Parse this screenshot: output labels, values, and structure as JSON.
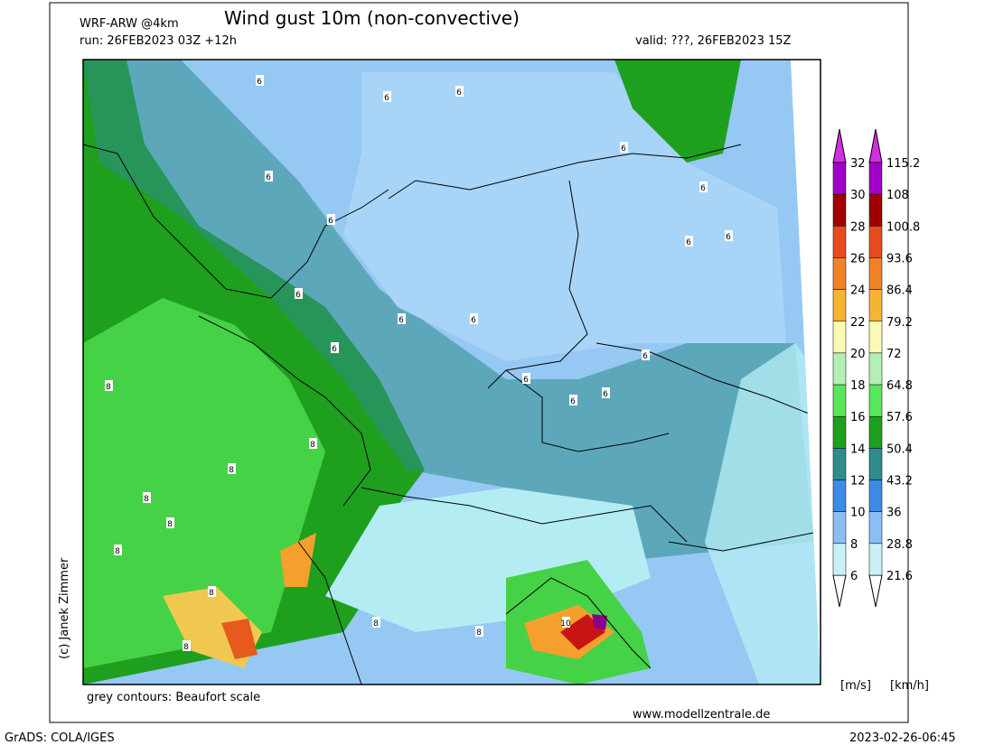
{
  "header": {
    "model": "WRF-ARW @4km",
    "title": "Wind gust 10m (non-convective)",
    "run": "run: 26FEB2023 03Z +12h",
    "valid": "valid: ???, 26FEB2023 15Z"
  },
  "map": {
    "credit": "(c) Janek Zimmer",
    "contour_note": "grey contours: Beaufort scale",
    "website": "www.modellzentrale.de",
    "contour_labels": [
      "6",
      "6",
      "6",
      "6",
      "6",
      "6",
      "6",
      "6",
      "6",
      "6",
      "6",
      "6",
      "6",
      "6",
      "6",
      "6",
      "6",
      "8",
      "8",
      "8",
      "8",
      "8",
      "8",
      "8",
      "8",
      "8",
      "8",
      "10"
    ]
  },
  "colorbar": {
    "ms_labels": [
      "32",
      "30",
      "28",
      "26",
      "24",
      "22",
      "20",
      "18",
      "16",
      "14",
      "12",
      "10",
      "8",
      "6"
    ],
    "kmh_labels": [
      "115.2",
      "108",
      "100.8",
      "93.6",
      "86.4",
      "79.2",
      "72",
      "64.8",
      "57.6",
      "50.4",
      "43.2",
      "36",
      "28.8",
      "21.6"
    ],
    "unit_ms": "[m/s]",
    "unit_kmh": "[km/h]"
  },
  "footer": {
    "left": "GrADS: COLA/IGES",
    "right": "2023-02-26-06:45"
  }
}
